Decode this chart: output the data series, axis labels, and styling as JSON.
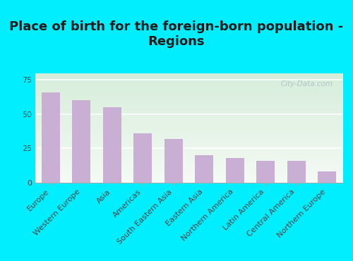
{
  "title": "Place of birth for the foreign-born population -\nRegions",
  "categories": [
    "Europe",
    "Western Europe",
    "Asia",
    "Americas",
    "South Eastern Asia",
    "Eastern Asia",
    "Northern America",
    "Latin America",
    "Central America",
    "Northern Europe"
  ],
  "values": [
    66,
    60,
    55,
    36,
    32,
    20,
    18,
    16,
    16,
    8
  ],
  "bar_color": "#c9afd4",
  "background_color": "#00eeff",
  "plot_bg_color_top": "#d6edda",
  "plot_bg_color_bottom": "#f0f5ee",
  "yticks": [
    0,
    25,
    50,
    75
  ],
  "ylim": [
    0,
    80
  ],
  "title_fontsize": 13,
  "tick_fontsize": 8,
  "title_color": "#1a1a1a",
  "watermark": "City-Data.com",
  "watermark_color": "#b0c0c8"
}
